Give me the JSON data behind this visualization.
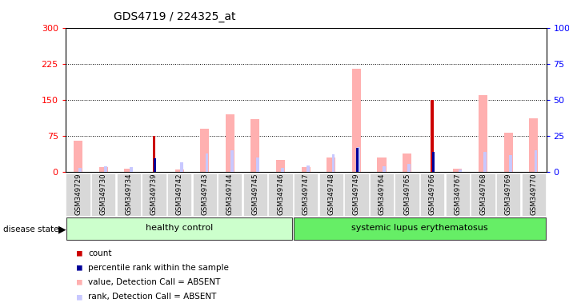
{
  "title": "GDS4719 / 224325_at",
  "samples": [
    "GSM349729",
    "GSM349730",
    "GSM349734",
    "GSM349739",
    "GSM349742",
    "GSM349743",
    "GSM349744",
    "GSM349745",
    "GSM349746",
    "GSM349747",
    "GSM349748",
    "GSM349749",
    "GSM349764",
    "GSM349765",
    "GSM349766",
    "GSM349767",
    "GSM349768",
    "GSM349769",
    "GSM349770"
  ],
  "n_healthy": 9,
  "n_sle": 10,
  "count": [
    0,
    0,
    0,
    75,
    0,
    0,
    0,
    0,
    0,
    0,
    0,
    0,
    0,
    0,
    150,
    0,
    0,
    0,
    0
  ],
  "percentile_rank": [
    0,
    0,
    0,
    28,
    0,
    0,
    0,
    0,
    0,
    0,
    0,
    50,
    0,
    0,
    42,
    0,
    0,
    0,
    0
  ],
  "value_absent": [
    65,
    10,
    7,
    0,
    5,
    90,
    120,
    110,
    25,
    10,
    30,
    215,
    30,
    38,
    0,
    7,
    160,
    82,
    112
  ],
  "rank_absent": [
    8,
    12,
    10,
    0,
    20,
    38,
    45,
    30,
    8,
    13,
    36,
    52,
    11,
    16,
    0,
    5,
    42,
    35,
    45
  ],
  "ylim_left": [
    0,
    300
  ],
  "ylim_right": [
    0,
    100
  ],
  "left_ticks": [
    0,
    75,
    150,
    225,
    300
  ],
  "right_ticks": [
    0,
    25,
    50,
    75,
    100
  ],
  "title_fontsize": 10,
  "background_color": "#ffffff",
  "plot_bg_color": "#ffffff",
  "xtick_cell_color": "#d8d8d8",
  "color_count": "#cc0000",
  "color_percentile": "#000099",
  "color_value_absent": "#ffb0b0",
  "color_rank_absent": "#c8c8ff",
  "disease_state_label": "disease state",
  "group1_label": "healthy control",
  "group2_label": "systemic lupus erythematosus",
  "group_bg_color1": "#ccffcc",
  "group_bg_color2": "#66ee66",
  "group_edge_color": "#444444",
  "legend": [
    {
      "color": "#cc0000",
      "label": "count"
    },
    {
      "color": "#000099",
      "label": "percentile rank within the sample"
    },
    {
      "color": "#ffb0b0",
      "label": "value, Detection Call = ABSENT"
    },
    {
      "color": "#c8c8ff",
      "label": "rank, Detection Call = ABSENT"
    }
  ]
}
